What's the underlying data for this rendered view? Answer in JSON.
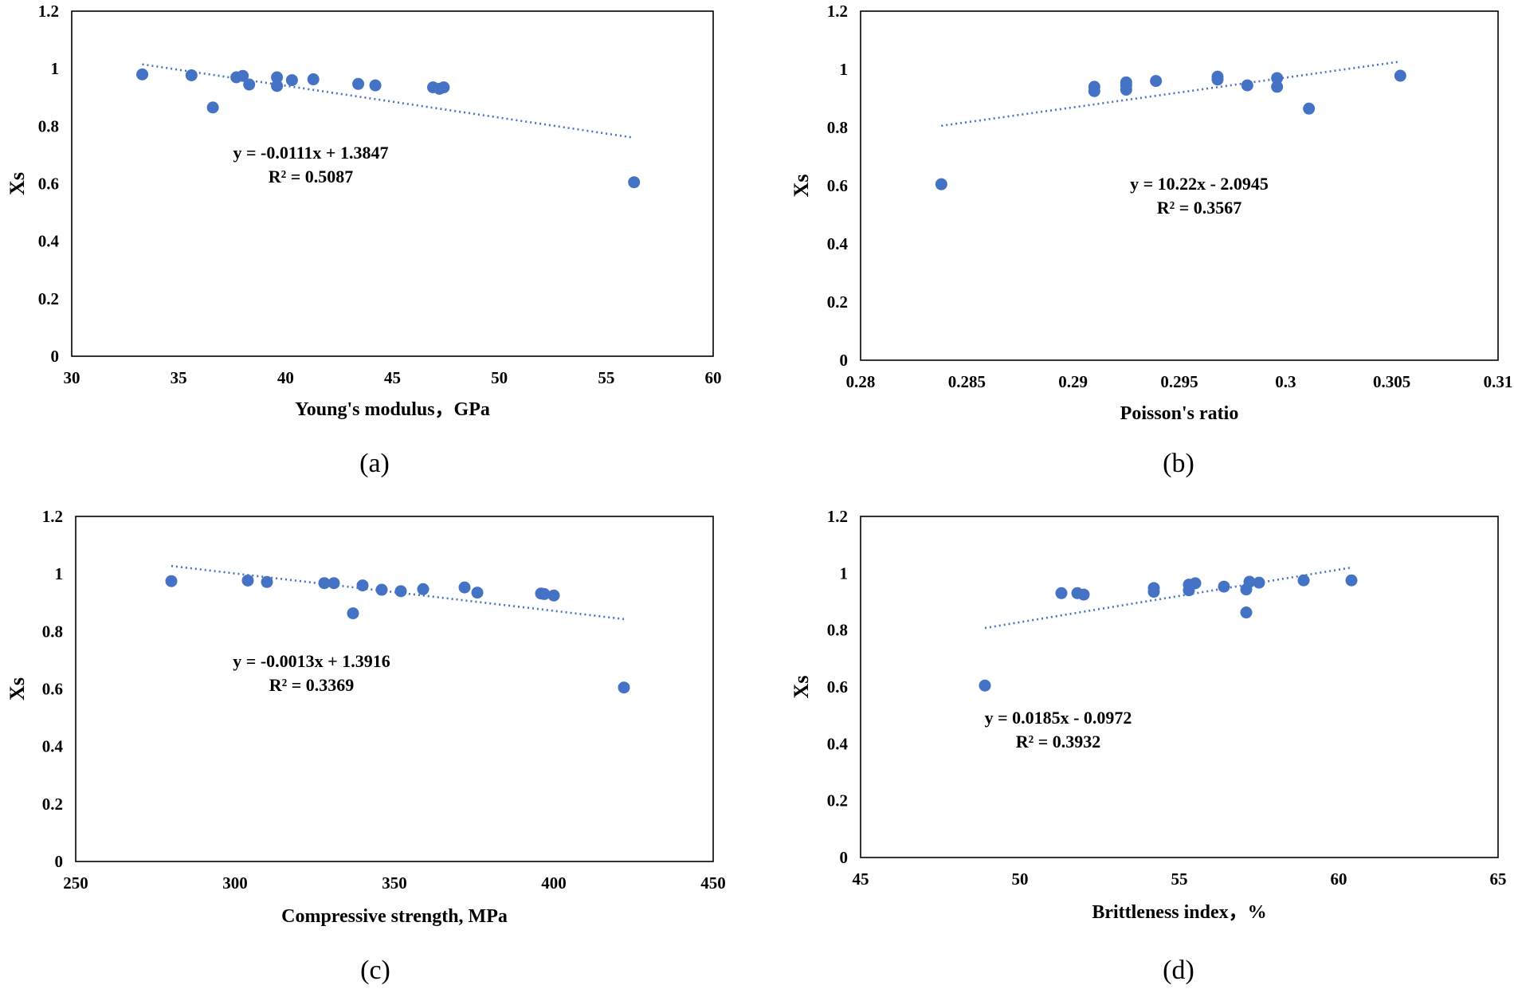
{
  "colors": {
    "series": "#4472C4",
    "axis": "#000000"
  },
  "chart_data": [
    {
      "type": "scatter",
      "panel": "(a)",
      "xlabel": "Young's modulus，GPa",
      "ylabel": "Xs",
      "xlim": [
        30,
        60
      ],
      "ylim": [
        0,
        1.2
      ],
      "xticks": [
        "30",
        "35",
        "40",
        "45",
        "50",
        "55",
        "60"
      ],
      "yticks": [
        "0",
        "0.2",
        "0.4",
        "0.6",
        "0.8",
        "1",
        "1.2"
      ],
      "points": [
        [
          33.3,
          0.98
        ],
        [
          35.6,
          0.977
        ],
        [
          36.6,
          0.865
        ],
        [
          37.7,
          0.97
        ],
        [
          38.0,
          0.975
        ],
        [
          38.3,
          0.945
        ],
        [
          39.6,
          0.97
        ],
        [
          39.6,
          0.94
        ],
        [
          40.3,
          0.96
        ],
        [
          41.3,
          0.963
        ],
        [
          43.4,
          0.947
        ],
        [
          44.2,
          0.942
        ],
        [
          46.9,
          0.935
        ],
        [
          47.2,
          0.93
        ],
        [
          47.4,
          0.935
        ],
        [
          56.3,
          0.605
        ]
      ],
      "trendline": {
        "slope": -0.0111,
        "intercept": 1.3847,
        "x_range": [
          33.3,
          56.3
        ]
      },
      "equation": "y = -0.0111x + 1.3847",
      "r2": "R² = 0.5087"
    },
    {
      "type": "scatter",
      "panel": "(b)",
      "xlabel": "Poisson's ratio",
      "ylabel": "Xs",
      "xlim": [
        0.28,
        0.31
      ],
      "ylim": [
        0,
        1.2
      ],
      "xticks": [
        "0.28",
        "0.285",
        "0.29",
        "0.295",
        "0.3",
        "0.305",
        "0.31"
      ],
      "yticks": [
        "0",
        "0.2",
        "0.4",
        "0.6",
        "0.8",
        "1",
        "1.2"
      ],
      "points": [
        [
          0.2838,
          0.605
        ],
        [
          0.291,
          0.94
        ],
        [
          0.291,
          0.925
        ],
        [
          0.2925,
          0.955
        ],
        [
          0.2925,
          0.945
        ],
        [
          0.2925,
          0.93
        ],
        [
          0.2939,
          0.96
        ],
        [
          0.2968,
          0.975
        ],
        [
          0.2968,
          0.965
        ],
        [
          0.2982,
          0.945
        ],
        [
          0.2996,
          0.97
        ],
        [
          0.2996,
          0.94
        ],
        [
          0.3011,
          0.865
        ],
        [
          0.3054,
          0.978
        ]
      ],
      "trendline": {
        "slope": 10.22,
        "intercept": -2.0945,
        "x_range": [
          0.2838,
          0.3054
        ]
      },
      "equation": "y = 10.22x - 2.0945",
      "r2": "R² = 0.3567"
    },
    {
      "type": "scatter",
      "panel": "(c)",
      "xlabel": "Compressive strength, MPa",
      "ylabel": "Xs",
      "xlim": [
        250,
        450
      ],
      "ylim": [
        0,
        1.2
      ],
      "xticks": [
        "250",
        "300",
        "350",
        "400",
        "450"
      ],
      "yticks": [
        "0",
        "0.2",
        "0.4",
        "0.6",
        "0.8",
        "1",
        "1.2"
      ],
      "points": [
        [
          280,
          0.975
        ],
        [
          304,
          0.977
        ],
        [
          310,
          0.972
        ],
        [
          328,
          0.968
        ],
        [
          331,
          0.968
        ],
        [
          337,
          0.863
        ],
        [
          340,
          0.96
        ],
        [
          346,
          0.945
        ],
        [
          352,
          0.94
        ],
        [
          359,
          0.947
        ],
        [
          372,
          0.953
        ],
        [
          376,
          0.935
        ],
        [
          396,
          0.932
        ],
        [
          397,
          0.93
        ],
        [
          400,
          0.925
        ],
        [
          422,
          0.605
        ]
      ],
      "trendline": {
        "slope": -0.0013,
        "intercept": 1.3916,
        "x_range": [
          280,
          422
        ]
      },
      "equation": "y = -0.0013x + 1.3916",
      "r2": "R² = 0.3369"
    },
    {
      "type": "scatter",
      "panel": "(d)",
      "xlabel": "Brittleness index，%",
      "ylabel": "Xs",
      "xlim": [
        45,
        65
      ],
      "ylim": [
        0,
        1.2
      ],
      "xticks": [
        "45",
        "50",
        "55",
        "60",
        "65"
      ],
      "yticks": [
        "0",
        "0.2",
        "0.4",
        "0.6",
        "0.8",
        "1",
        "1.2"
      ],
      "points": [
        [
          48.9,
          0.605
        ],
        [
          51.3,
          0.93
        ],
        [
          51.8,
          0.93
        ],
        [
          52.0,
          0.925
        ],
        [
          54.2,
          0.948
        ],
        [
          54.2,
          0.935
        ],
        [
          55.3,
          0.96
        ],
        [
          55.3,
          0.94
        ],
        [
          55.5,
          0.965
        ],
        [
          56.4,
          0.953
        ],
        [
          57.1,
          0.862
        ],
        [
          57.1,
          0.943
        ],
        [
          57.2,
          0.97
        ],
        [
          57.5,
          0.967
        ],
        [
          58.9,
          0.975
        ],
        [
          60.4,
          0.975
        ]
      ],
      "trendline": {
        "slope": 0.0185,
        "intercept": -0.0972,
        "x_range": [
          48.9,
          60.4
        ]
      },
      "equation": "y = 0.0185x - 0.0972",
      "r2": "R² = 0.3932"
    }
  ]
}
